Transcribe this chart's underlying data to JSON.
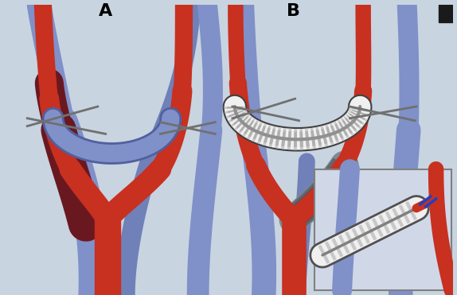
{
  "bg_color": "#c8d4e0",
  "label_A": "A",
  "label_B": "B",
  "label_fontsize": 16,
  "label_fontweight": "bold",
  "fig_width": 5.74,
  "fig_height": 3.71,
  "dpi": 100,
  "RED": "#c83020",
  "BLUE": "#8090c8",
  "BLUE2": "#7080b8",
  "DARKRED": "#6a1820",
  "DARKBLUE": "#5060a0",
  "GRAY": "#909090",
  "LGRAY": "#c8c8c8",
  "WHITE": "#f0f0f0",
  "INSET_BG": "#d0d8e8",
  "MESH": "#808890"
}
